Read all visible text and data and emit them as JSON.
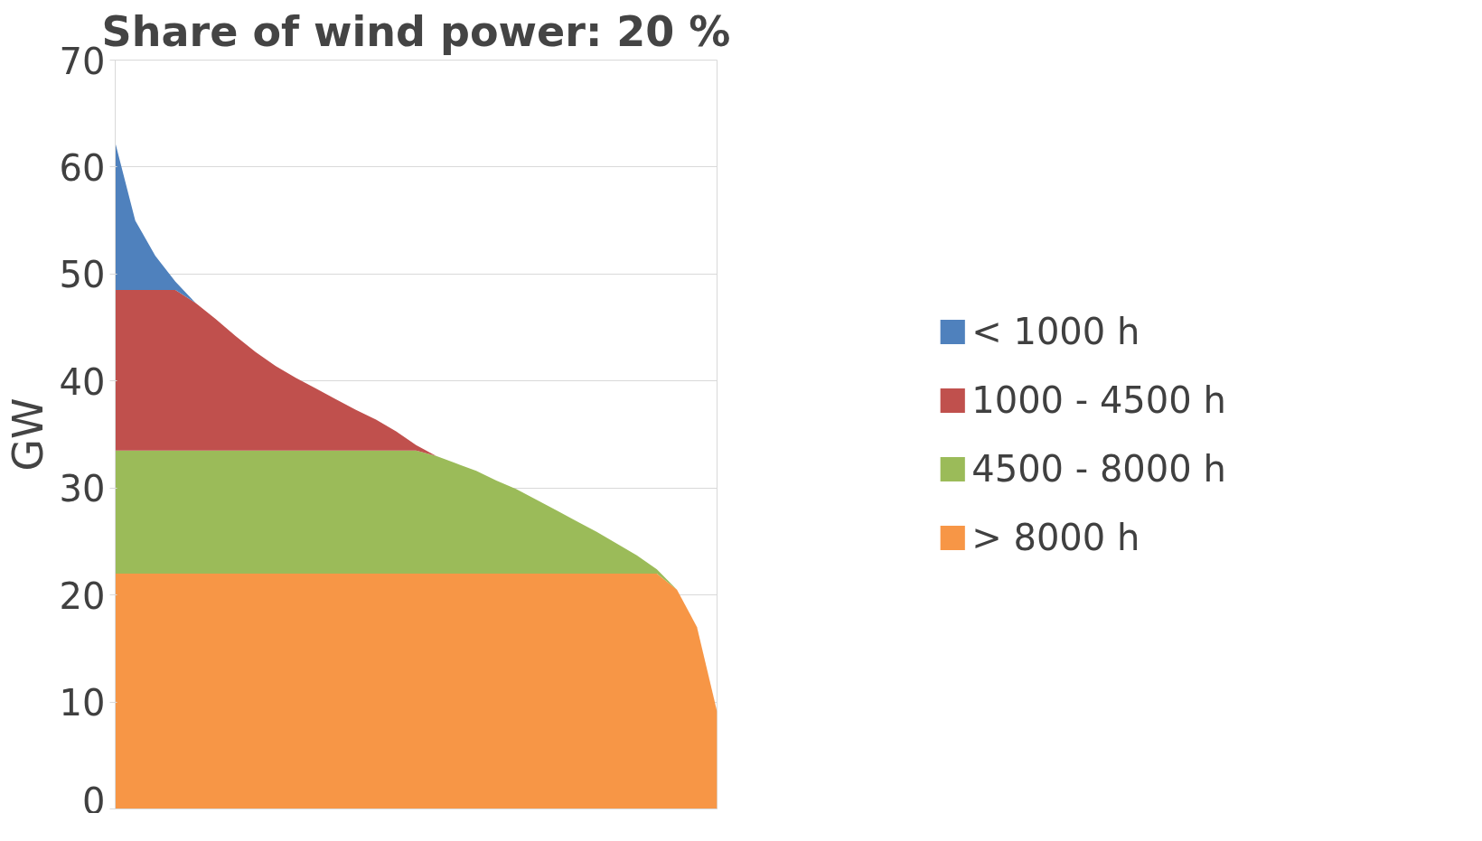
{
  "chart_data": {
    "type": "area",
    "title": "Share of wind power: 20 %",
    "ylabel": "GW",
    "stacked": true,
    "categories": [
      null,
      null,
      null,
      null,
      null,
      null,
      null,
      null,
      null,
      null,
      null,
      null,
      null,
      null,
      null,
      null,
      null,
      null,
      null,
      null,
      null,
      null,
      null,
      null,
      null,
      null,
      null,
      null,
      null,
      null,
      null
    ],
    "series": [
      {
        "name": "> 8000 h",
        "color": "#f79646",
        "values": [
          22,
          22,
          22,
          22,
          22,
          22,
          22,
          22,
          22,
          22,
          22,
          22,
          22,
          22,
          22,
          22,
          22,
          22,
          22,
          22,
          22,
          22,
          22,
          22,
          22,
          22,
          22,
          22,
          20.5,
          17.0,
          9.1
        ]
      },
      {
        "name": "4500 - 8000 h",
        "color": "#9bbb59",
        "values": [
          11.5,
          11.5,
          11.5,
          11.5,
          11.5,
          11.5,
          11.5,
          11.5,
          11.5,
          11.5,
          11.5,
          11.5,
          11.5,
          11.5,
          11.5,
          11.5,
          11.0,
          10.3,
          9.6,
          8.7,
          7.9,
          6.9,
          5.9,
          4.9,
          3.9,
          2.8,
          1.7,
          0.4,
          0,
          0,
          0
        ]
      },
      {
        "name": "1000 - 4500 h",
        "color": "#c0504d",
        "values": [
          15,
          15,
          15,
          15,
          13.8,
          12.3,
          10.7,
          9.2,
          7.9,
          6.8,
          5.8,
          4.8,
          3.8,
          2.9,
          1.8,
          0.5,
          0,
          0,
          0,
          0,
          0,
          0,
          0,
          0,
          0,
          0,
          0,
          0,
          0,
          0,
          0
        ]
      },
      {
        "name": "< 1000 h",
        "color": "#4f81bd",
        "values": [
          13.8,
          6.5,
          3.2,
          0.8,
          0,
          0,
          0,
          0,
          0,
          0,
          0,
          0,
          0,
          0,
          0,
          0,
          0,
          0,
          0,
          0,
          0,
          0,
          0,
          0,
          0,
          0,
          0,
          0,
          0,
          0,
          0
        ]
      }
    ],
    "ylim": [
      0,
      70
    ],
    "yticks": [
      0,
      10,
      20,
      30,
      40,
      50,
      60,
      70
    ],
    "grid": "y",
    "legend": "right",
    "tick_labels": "y"
  }
}
